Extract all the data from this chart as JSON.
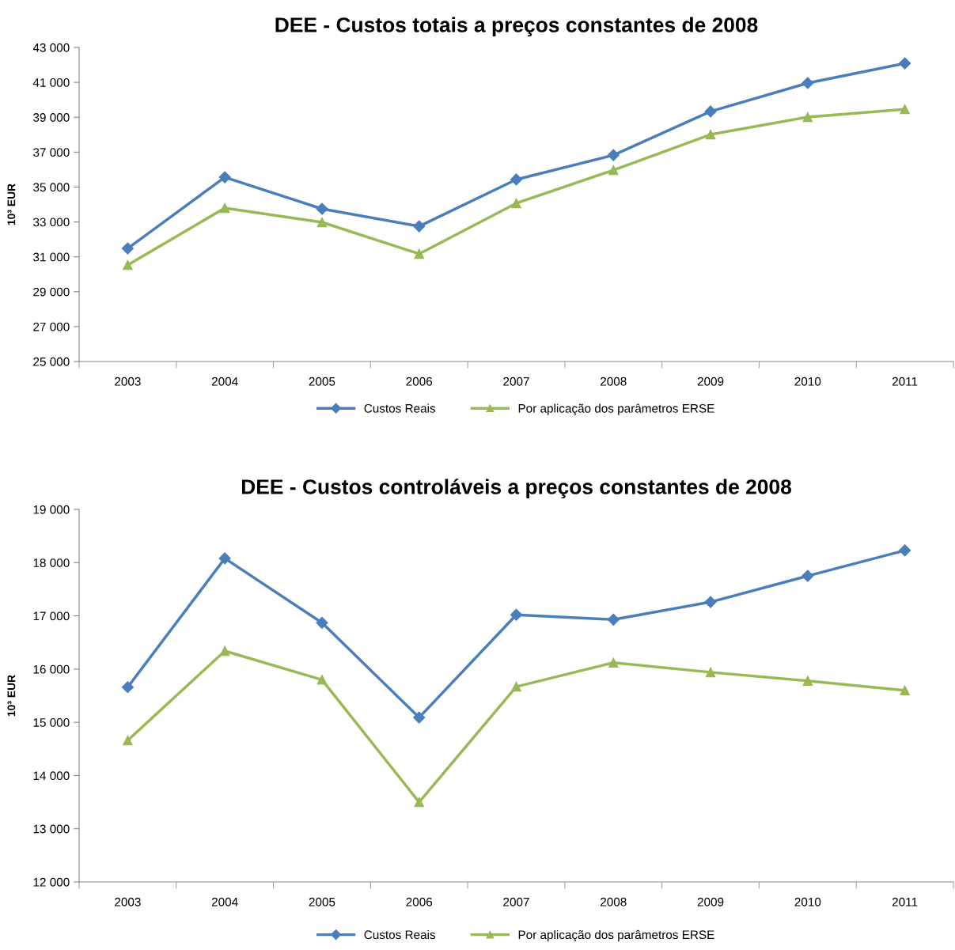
{
  "chart_data": [
    {
      "type": "line",
      "title": "DEE - Custos totais a preços constantes de 2008",
      "ylabel": "10³ EUR",
      "categories": [
        "2003",
        "2004",
        "2005",
        "2006",
        "2007",
        "2008",
        "2009",
        "2010",
        "2011"
      ],
      "series": [
        {
          "name": "Custos Reais",
          "color": "#4a7ebb",
          "marker": "diamond",
          "values": [
            31480,
            35560,
            33750,
            32750,
            35430,
            36830,
            39330,
            40960,
            42090
          ]
        },
        {
          "name": "Por aplicação dos parâmetros ERSE",
          "color": "#98b954",
          "marker": "triangle",
          "values": [
            30530,
            33800,
            32980,
            31170,
            34070,
            35970,
            38010,
            39010,
            39460
          ]
        }
      ],
      "ylim": [
        25000,
        43000
      ],
      "yticks": [
        {
          "value": 25000,
          "label": "25 000"
        },
        {
          "value": 27000,
          "label": "27 000"
        },
        {
          "value": 29000,
          "label": "29 000"
        },
        {
          "value": 31000,
          "label": "31 000"
        },
        {
          "value": 33000,
          "label": "33 000"
        },
        {
          "value": 35000,
          "label": "35 000"
        },
        {
          "value": 37000,
          "label": "37 000"
        },
        {
          "value": 39000,
          "label": "39 000"
        },
        {
          "value": 41000,
          "label": "41 000"
        },
        {
          "value": 43000,
          "label": "43 000"
        }
      ],
      "grid": false,
      "legend": "bottom",
      "line_style": "solid"
    },
    {
      "type": "line",
      "title": "DEE - Custos controláveis a preços constantes de 2008",
      "ylabel": "10³ EUR",
      "categories": [
        "2003",
        "2004",
        "2005",
        "2006",
        "2007",
        "2008",
        "2009",
        "2010",
        "2011"
      ],
      "series": [
        {
          "name": "Custos Reais",
          "color": "#4a7ebb",
          "marker": "diamond",
          "values": [
            15660,
            18080,
            16870,
            15090,
            17020,
            16930,
            17260,
            17750,
            18230
          ]
        },
        {
          "name": "Por aplicação dos parâmetros ERSE",
          "color": "#98b954",
          "marker": "triangle",
          "values": [
            14660,
            16340,
            15800,
            13500,
            15670,
            16120,
            15940,
            15780,
            15600
          ]
        }
      ],
      "ylim": [
        12000,
        19000
      ],
      "yticks": [
        {
          "value": 12000,
          "label": "12 000"
        },
        {
          "value": 13000,
          "label": "13 000"
        },
        {
          "value": 14000,
          "label": "14 000"
        },
        {
          "value": 15000,
          "label": "15 000"
        },
        {
          "value": 16000,
          "label": "16 000"
        },
        {
          "value": 17000,
          "label": "17 000"
        },
        {
          "value": 18000,
          "label": "18 000"
        },
        {
          "value": 19000,
          "label": "19 000"
        }
      ],
      "grid": false,
      "legend": "bottom",
      "line_style": "solid"
    }
  ]
}
